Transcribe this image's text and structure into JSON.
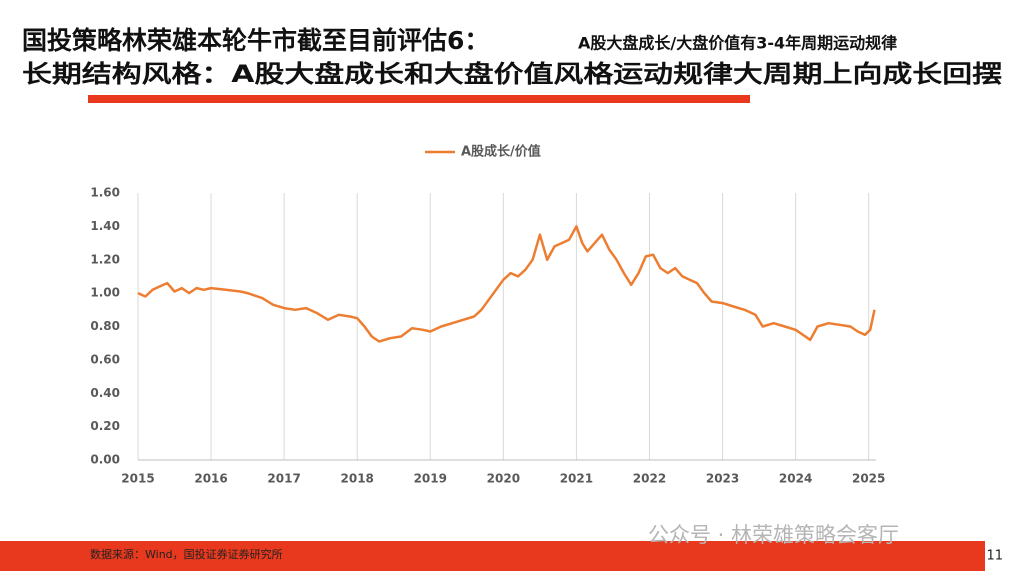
{
  "slide": {
    "title": "国投策略林荣雄本轮牛市截至目前评估6：",
    "title_note": "A股大盘成长/大盘价值有3-4年周期运动规律",
    "heading": "长期结构风格：A股大盘成长和大盘价值风格运动规律大周期上向成长回摆",
    "source": "数据来源：Wind，国投证券证券研究所",
    "watermark": "公众号 · 林荣雄策略会客厅",
    "page_number": "11"
  },
  "chart_data": {
    "type": "line",
    "x": [
      2015.0,
      2015.1,
      2015.2,
      2015.3,
      2015.4,
      2015.5,
      2015.6,
      2015.7,
      2015.8,
      2015.9,
      2016.0,
      2016.2,
      2016.4,
      2016.5,
      2016.7,
      2016.85,
      2017.0,
      2017.15,
      2017.3,
      2017.45,
      2017.6,
      2017.75,
      2017.9,
      2018.0,
      2018.1,
      2018.2,
      2018.3,
      2018.45,
      2018.6,
      2018.75,
      2018.9,
      2019.0,
      2019.15,
      2019.3,
      2019.45,
      2019.6,
      2019.7,
      2019.8,
      2019.9,
      2020.0,
      2020.1,
      2020.2,
      2020.3,
      2020.4,
      2020.5,
      2020.6,
      2020.7,
      2020.8,
      2020.9,
      2021.0,
      2021.08,
      2021.15,
      2021.25,
      2021.35,
      2021.45,
      2021.55,
      2021.65,
      2021.75,
      2021.85,
      2021.95,
      2022.05,
      2022.15,
      2022.25,
      2022.35,
      2022.45,
      2022.55,
      2022.65,
      2022.75,
      2022.85,
      2023.0,
      2023.15,
      2023.3,
      2023.45,
      2023.55,
      2023.7,
      2023.85,
      2024.0,
      2024.1,
      2024.2,
      2024.3,
      2024.45,
      2024.6,
      2024.75,
      2024.85,
      2024.95,
      2025.02,
      2025.08
    ],
    "series": [
      {
        "name": "A股成长/价值",
        "color": "#ED7D31",
        "values": [
          1.0,
          0.98,
          1.02,
          1.04,
          1.06,
          1.01,
          1.03,
          1.0,
          1.03,
          1.02,
          1.03,
          1.02,
          1.01,
          1.0,
          0.97,
          0.93,
          0.91,
          0.9,
          0.91,
          0.88,
          0.84,
          0.87,
          0.86,
          0.85,
          0.8,
          0.74,
          0.71,
          0.73,
          0.74,
          0.79,
          0.78,
          0.77,
          0.8,
          0.82,
          0.84,
          0.86,
          0.9,
          0.96,
          1.02,
          1.08,
          1.12,
          1.1,
          1.14,
          1.2,
          1.35,
          1.2,
          1.28,
          1.3,
          1.32,
          1.4,
          1.3,
          1.25,
          1.3,
          1.35,
          1.26,
          1.2,
          1.12,
          1.05,
          1.12,
          1.22,
          1.23,
          1.15,
          1.12,
          1.15,
          1.1,
          1.08,
          1.06,
          1.0,
          0.95,
          0.94,
          0.92,
          0.9,
          0.87,
          0.8,
          0.82,
          0.8,
          0.78,
          0.75,
          0.72,
          0.8,
          0.82,
          0.81,
          0.8,
          0.77,
          0.75,
          0.78,
          0.9
        ]
      }
    ],
    "xlim": [
      2015.0,
      2025.1
    ],
    "xticks": [
      2015,
      2016,
      2017,
      2018,
      2019,
      2020,
      2021,
      2022,
      2023,
      2024,
      2025
    ],
    "ylim": [
      0,
      1.6
    ],
    "yticks": [
      {
        "value": 0,
        "label": "0.00"
      },
      {
        "value": 0.2,
        "label": "0.20"
      },
      {
        "value": 0.4,
        "label": "0.40"
      },
      {
        "value": 0.6,
        "label": "0.60"
      },
      {
        "value": 0.8,
        "label": "0.80"
      },
      {
        "value": 1.0,
        "label": "1.00"
      },
      {
        "value": 1.2,
        "label": "1.20"
      },
      {
        "value": 1.4,
        "label": "1.40"
      },
      {
        "value": 1.6,
        "label": "1.60"
      }
    ],
    "grid": true,
    "legend": "top"
  }
}
